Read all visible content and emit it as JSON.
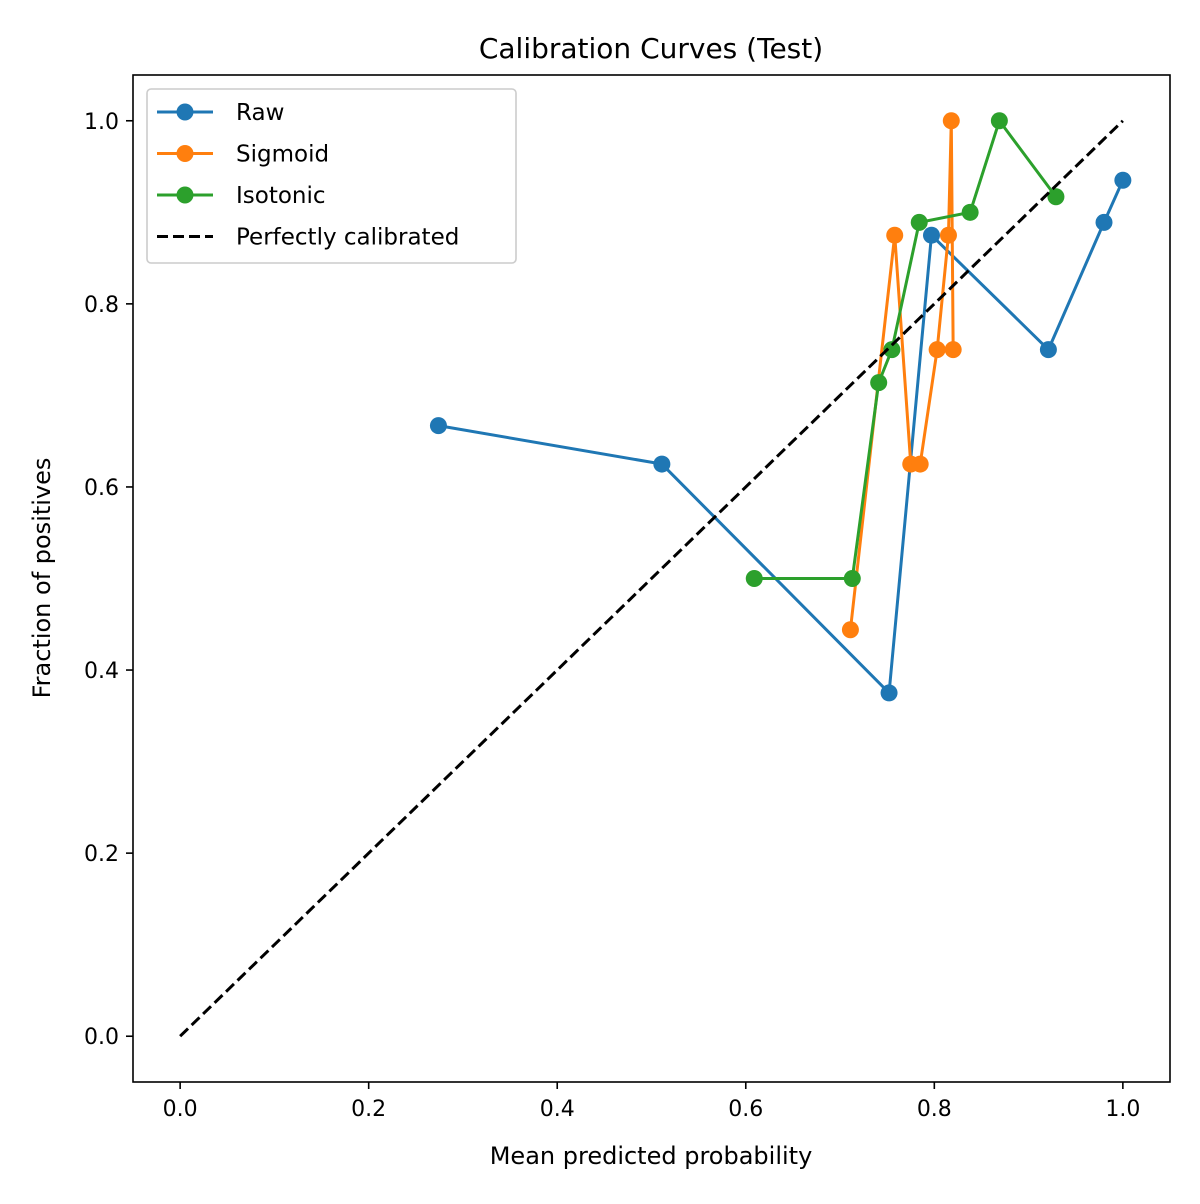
{
  "chart_data": {
    "type": "line",
    "title": "Calibration Curves (Test)",
    "xlabel": "Mean predicted probability",
    "ylabel": "Fraction of positives",
    "xlim": [
      -0.05,
      1.05
    ],
    "ylim": [
      -0.05,
      1.05
    ],
    "xticks": [
      0.0,
      0.2,
      0.4,
      0.6,
      0.8,
      1.0
    ],
    "yticks": [
      0.0,
      0.2,
      0.4,
      0.6,
      0.8,
      1.0
    ],
    "xtick_labels": [
      "0.0",
      "0.2",
      "0.4",
      "0.6",
      "0.8",
      "1.0"
    ],
    "ytick_labels": [
      "0.0",
      "0.2",
      "0.4",
      "0.6",
      "0.8",
      "1.0"
    ],
    "grid": false,
    "legend_position": "upper-left",
    "series": [
      {
        "name": "Raw",
        "color": "#1f77b4",
        "marker": "circle",
        "linestyle": "solid",
        "x": [
          0.274,
          0.511,
          0.752,
          0.797,
          0.921,
          0.98,
          1.0
        ],
        "y": [
          0.667,
          0.625,
          0.375,
          0.875,
          0.75,
          0.889,
          0.935
        ]
      },
      {
        "name": "Sigmoid",
        "color": "#ff7f0e",
        "marker": "circle",
        "linestyle": "solid",
        "x": [
          0.711,
          0.758,
          0.775,
          0.785,
          0.803,
          0.815,
          0.818,
          0.82
        ],
        "y": [
          0.444,
          0.875,
          0.625,
          0.625,
          0.75,
          0.875,
          1.0,
          0.75
        ]
      },
      {
        "name": "Isotonic",
        "color": "#2ca02c",
        "marker": "circle",
        "linestyle": "solid",
        "x": [
          0.609,
          0.713,
          0.741,
          0.755,
          0.784,
          0.838,
          0.869,
          0.929
        ],
        "y": [
          0.5,
          0.5,
          0.714,
          0.75,
          0.889,
          0.9,
          1.0,
          0.917
        ]
      },
      {
        "name": "Perfectly calibrated",
        "color": "#000000",
        "marker": "none",
        "linestyle": "dashed",
        "x": [
          0.0,
          1.0
        ],
        "y": [
          0.0,
          1.0
        ]
      }
    ]
  }
}
